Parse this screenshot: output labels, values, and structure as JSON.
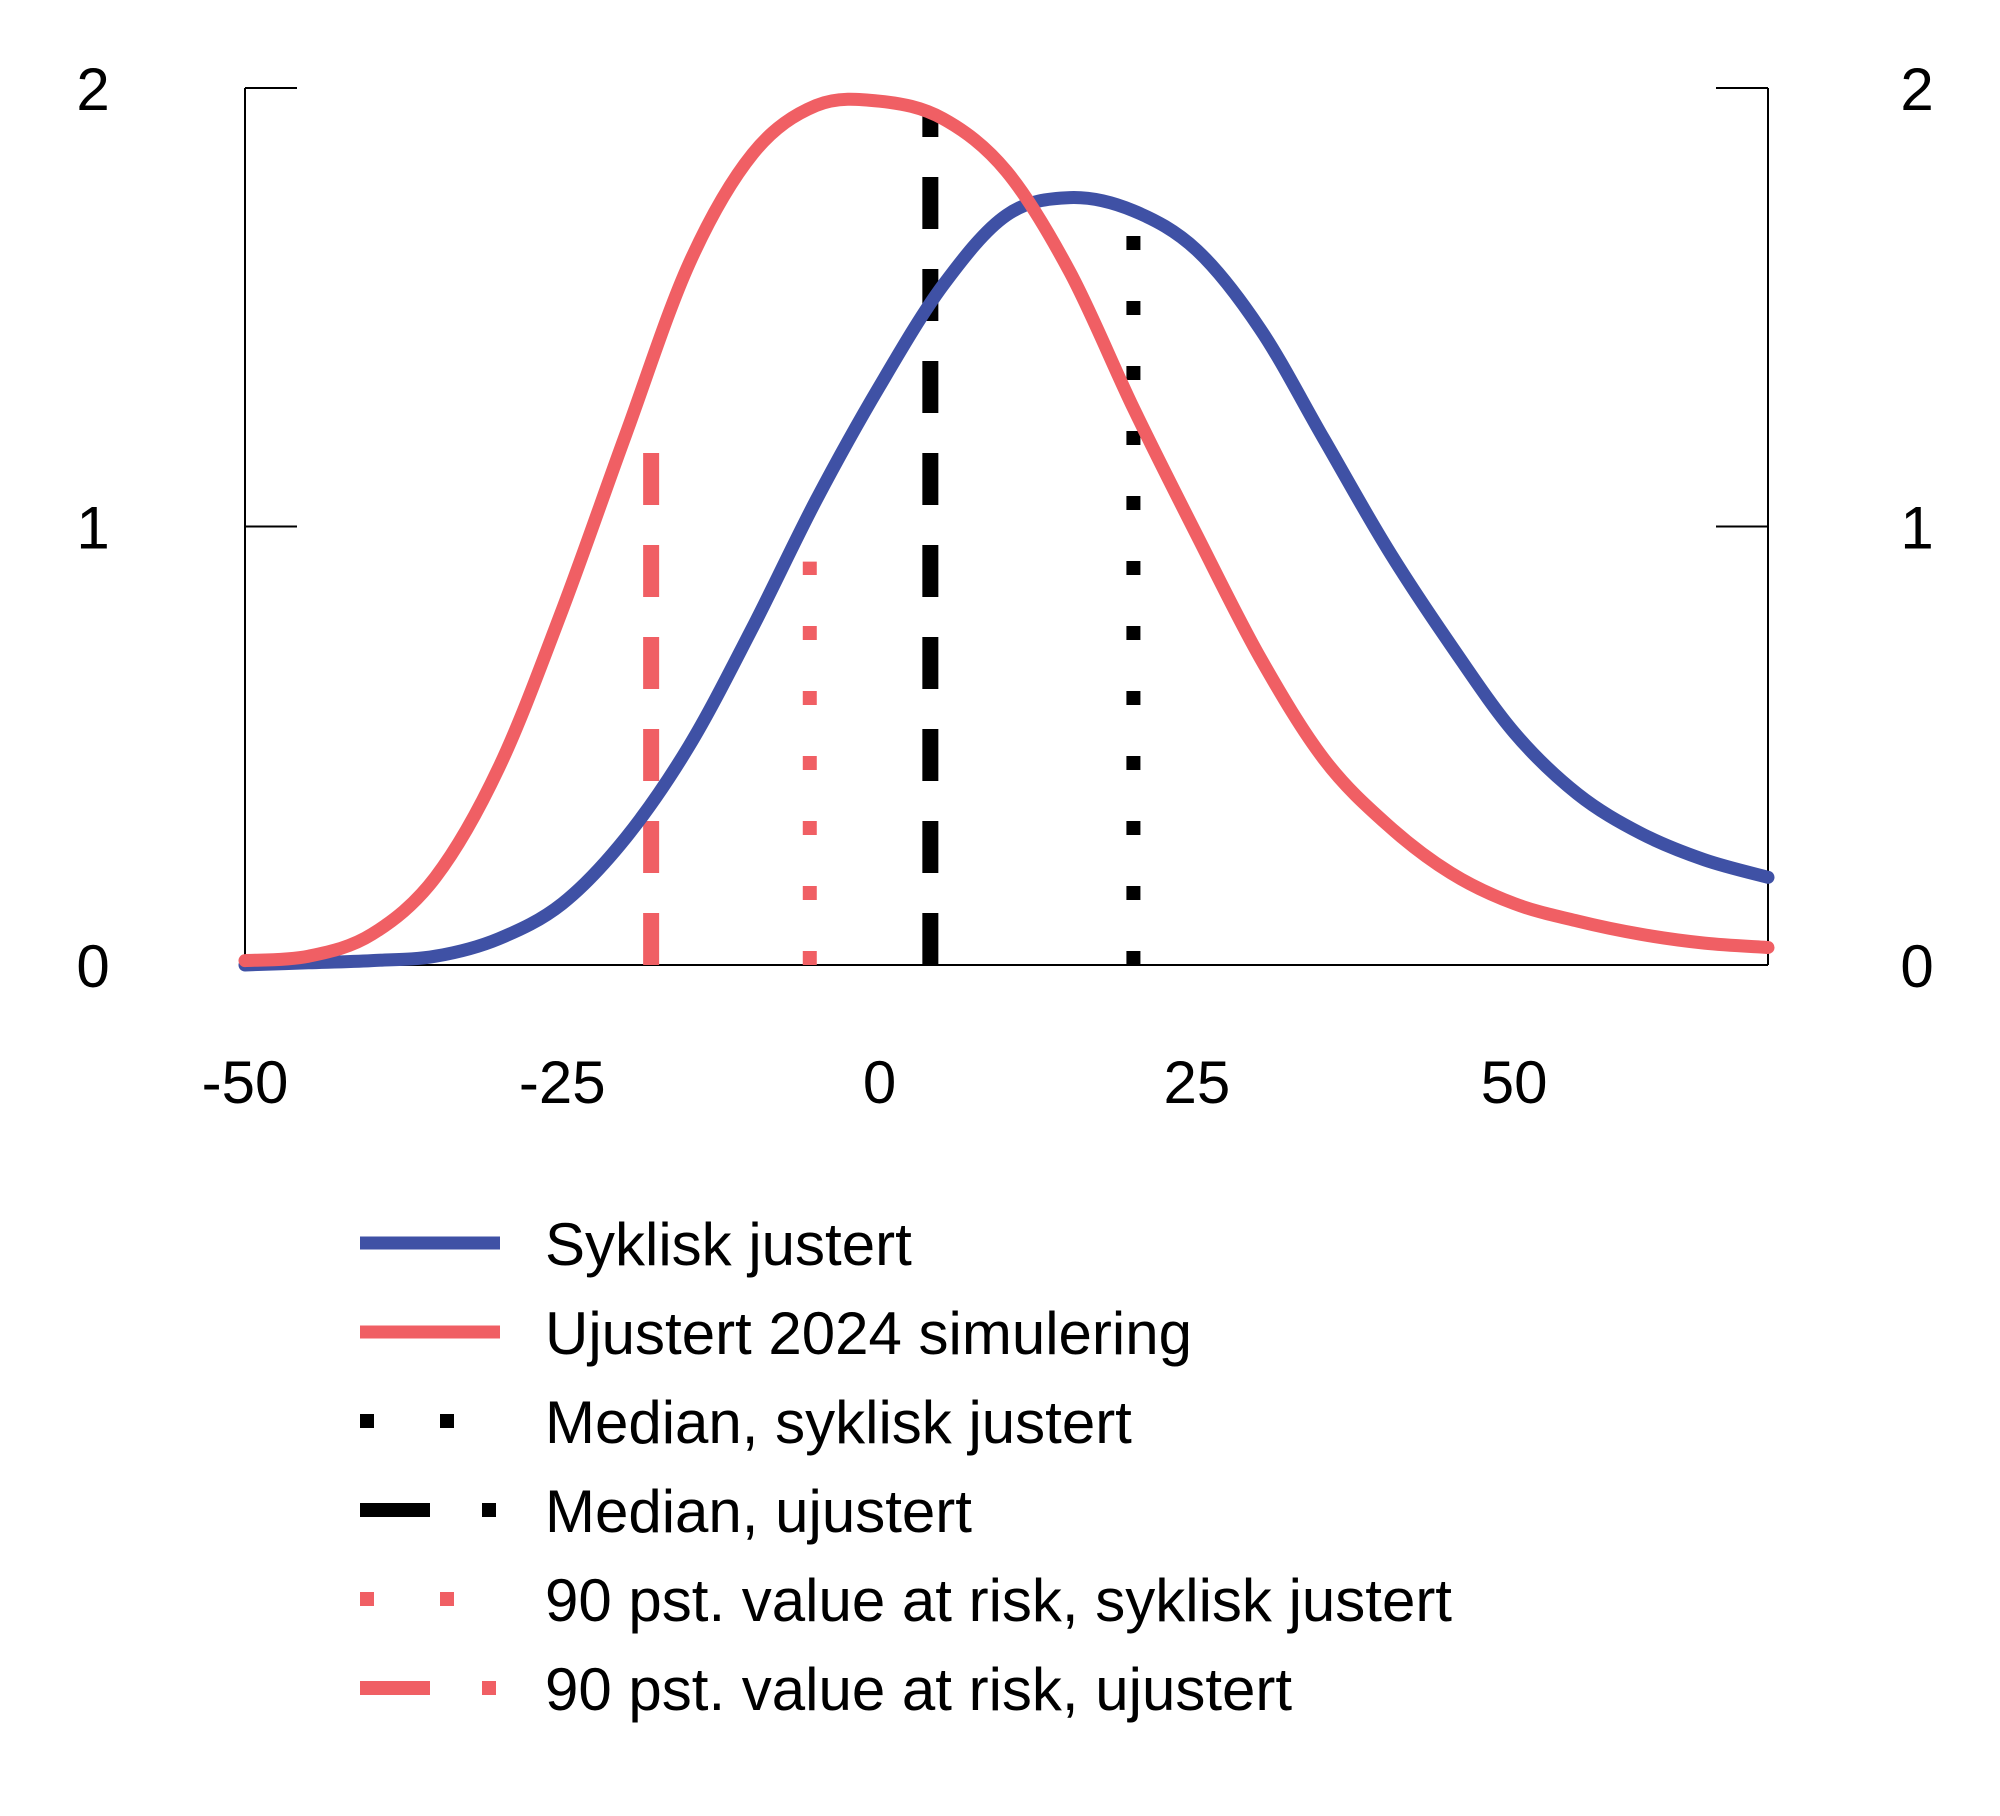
{
  "chart_data": {
    "type": "line",
    "title": "",
    "xlabel": "",
    "ylabel": "",
    "xlim": [
      -50,
      70
    ],
    "ylim": [
      0,
      2
    ],
    "x_ticks": [
      "-50",
      "-25",
      "0",
      "25",
      "50"
    ],
    "x_tick_values": [
      -50,
      -25,
      0,
      25,
      50
    ],
    "y_ticks_left": [
      "0",
      "1",
      "2"
    ],
    "y_ticks_right": [
      "0",
      "1",
      "2"
    ],
    "y_tick_values": [
      0,
      1,
      2
    ],
    "grid": false,
    "legend_position": "bottom",
    "series": [
      {
        "name": "Syklisk justert",
        "color": "#3f51a5",
        "style": "solid",
        "x": [
          -50,
          -45,
          -40,
          -35,
          -30,
          -25,
          -20,
          -15,
          -10,
          -5,
          0,
          5,
          10,
          15,
          20,
          25,
          30,
          35,
          40,
          45,
          50,
          55,
          60,
          65,
          70
        ],
        "y": [
          0.0,
          0.005,
          0.01,
          0.02,
          0.06,
          0.14,
          0.29,
          0.5,
          0.77,
          1.06,
          1.32,
          1.55,
          1.71,
          1.75,
          1.72,
          1.63,
          1.45,
          1.2,
          0.95,
          0.73,
          0.53,
          0.39,
          0.3,
          0.24,
          0.2
        ]
      },
      {
        "name": "Ujustert 2024 simulering",
        "color": "#f05f64",
        "style": "solid",
        "x": [
          -50,
          -45,
          -40,
          -35,
          -30,
          -25,
          -20,
          -15,
          -10,
          -5,
          0,
          5,
          10,
          15,
          20,
          25,
          30,
          35,
          40,
          45,
          50,
          55,
          60,
          65,
          70
        ],
        "y": [
          0.01,
          0.02,
          0.07,
          0.2,
          0.45,
          0.81,
          1.21,
          1.6,
          1.85,
          1.96,
          1.97,
          1.93,
          1.81,
          1.58,
          1.27,
          0.98,
          0.7,
          0.47,
          0.32,
          0.21,
          0.14,
          0.1,
          0.07,
          0.05,
          0.04
        ]
      }
    ],
    "vlines": [
      {
        "name": "Median, syklisk justert",
        "x": 20,
        "y_top": 1.7,
        "color": "#000000",
        "style": "dotted"
      },
      {
        "name": "Median, ujustert",
        "x": 4,
        "y_top": 1.94,
        "color": "#000000",
        "style": "dashed"
      },
      {
        "name": "90 pst. value at risk, syklisk justert",
        "x": -5.5,
        "y_top": 0.92,
        "color": "#f05f64",
        "style": "dotted"
      },
      {
        "name": "90 pst. value at risk, ujustert",
        "x": -18,
        "y_top": 1.17,
        "color": "#f05f64",
        "style": "dashed"
      }
    ]
  }
}
